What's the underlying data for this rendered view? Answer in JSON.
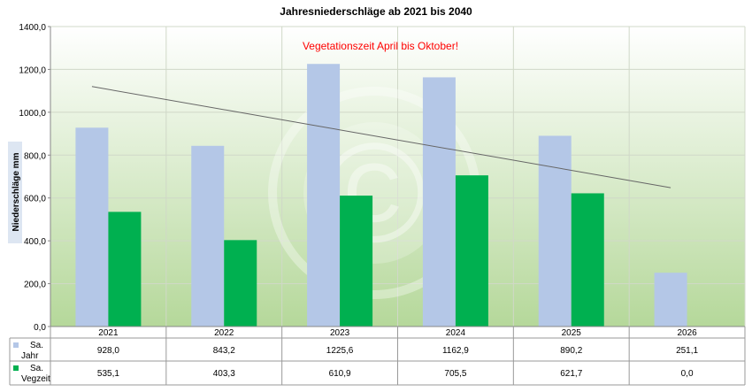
{
  "chart_data": {
    "type": "bar",
    "title": "Jahresniederschläge ab 2021 bis 2040",
    "annotation": "Vegetationszeit April bis Oktober!",
    "ylabel": "Niederschläge mm",
    "xlabel": "",
    "ylim": [
      0,
      1400
    ],
    "yticks": [
      0,
      200,
      400,
      600,
      800,
      1000,
      1200,
      1400
    ],
    "ytick_labels": [
      "0,0",
      "200,0",
      "400,0",
      "600,0",
      "800,0",
      "1000,0",
      "1200,0",
      "1400,0"
    ],
    "categories": [
      "2021",
      "2022",
      "2023",
      "2024",
      "2025",
      "2026"
    ],
    "series": [
      {
        "name": "Sa. Jahr",
        "legend_lines": [
          "Sa.",
          "Jahr"
        ],
        "values": [
          928.0,
          843.2,
          1225.6,
          1162.9,
          890.2,
          251.1
        ],
        "labels": [
          "928,0",
          "843,2",
          "1225,6",
          "1162,9",
          "890,2",
          "251,1"
        ],
        "color": "#b4c7e7"
      },
      {
        "name": "Sa. Vegzeit",
        "legend_lines": [
          "Sa.",
          "Vegzeit"
        ],
        "values": [
          535.1,
          403.3,
          610.9,
          705.5,
          621.7,
          0.0
        ],
        "labels": [
          "535,1",
          "403,3",
          "610,9",
          "705,5",
          "621,7",
          "0,0"
        ],
        "color": "#00b050"
      }
    ],
    "trendline": {
      "series": "Sa. Jahr",
      "from": 1120,
      "to": 648,
      "color": "#666666"
    },
    "grid": true,
    "legend": "data-table",
    "background_gradient": [
      "#ffffff",
      "#b5d89a"
    ],
    "annotation_color": "#ff0000",
    "watermark": "©"
  }
}
